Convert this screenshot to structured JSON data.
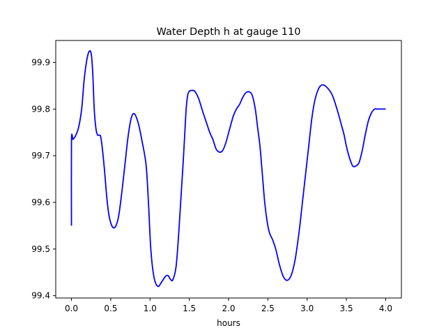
{
  "chart_data": {
    "type": "line",
    "title": "Water Depth h at gauge 110",
    "xlabel": "hours",
    "ylabel": "",
    "xlim": [
      -0.2,
      4.2
    ],
    "ylim": [
      99.395,
      99.947
    ],
    "xticks": [
      0.0,
      0.5,
      1.0,
      1.5,
      2.0,
      2.5,
      3.0,
      3.5,
      4.0
    ],
    "xtick_labels": [
      "0.0",
      "0.5",
      "1.0",
      "1.5",
      "2.0",
      "2.5",
      "3.0",
      "3.5",
      "4.0"
    ],
    "yticks": [
      99.4,
      99.5,
      99.6,
      99.7,
      99.8,
      99.9
    ],
    "ytick_labels": [
      "99.4",
      "99.5",
      "99.6",
      "99.7",
      "99.8",
      "99.9"
    ],
    "grid": false,
    "series": [
      {
        "color": "#0000ff",
        "x": [
          0.0,
          0.0,
          0.02,
          0.05,
          0.09,
          0.13,
          0.16,
          0.19,
          0.22,
          0.25,
          0.27,
          0.29,
          0.31,
          0.33,
          0.35,
          0.37,
          0.39,
          0.42,
          0.45,
          0.48,
          0.52,
          0.56,
          0.6,
          0.64,
          0.68,
          0.72,
          0.76,
          0.8,
          0.85,
          0.9,
          0.95,
          0.98,
          1.01,
          1.05,
          1.1,
          1.15,
          1.2,
          1.23,
          1.26,
          1.29,
          1.33,
          1.36,
          1.39,
          1.42,
          1.44,
          1.46,
          1.48,
          1.5,
          1.53,
          1.57,
          1.62,
          1.67,
          1.72,
          1.76,
          1.8,
          1.84,
          1.88,
          1.92,
          1.96,
          2.01,
          2.06,
          2.1,
          2.14,
          2.18,
          2.22,
          2.26,
          2.3,
          2.34,
          2.37,
          2.4,
          2.43,
          2.46,
          2.49,
          2.52,
          2.56,
          2.6,
          2.65,
          2.7,
          2.75,
          2.8,
          2.85,
          2.9,
          2.94,
          2.98,
          3.02,
          3.06,
          3.1,
          3.15,
          3.2,
          3.26,
          3.32,
          3.38,
          3.43,
          3.47,
          3.5,
          3.54,
          3.58,
          3.62,
          3.66,
          3.7,
          3.74,
          3.78,
          3.82,
          3.86,
          3.9,
          3.94,
          3.97,
          4.0
        ],
        "y": [
          99.55,
          99.732,
          99.735,
          99.742,
          99.76,
          99.8,
          99.86,
          99.9,
          99.922,
          99.92,
          99.88,
          99.8,
          99.76,
          99.745,
          99.744,
          99.742,
          99.72,
          99.67,
          99.61,
          99.57,
          99.548,
          99.548,
          99.57,
          99.62,
          99.68,
          99.74,
          99.78,
          99.79,
          99.77,
          99.73,
          99.68,
          99.6,
          99.5,
          99.44,
          99.42,
          99.43,
          99.442,
          99.443,
          99.435,
          99.434,
          99.46,
          99.52,
          99.6,
          99.68,
          99.74,
          99.8,
          99.83,
          99.838,
          99.84,
          99.838,
          99.822,
          99.795,
          99.77,
          99.75,
          99.735,
          99.715,
          99.708,
          99.71,
          99.725,
          99.755,
          99.785,
          99.8,
          99.81,
          99.825,
          99.835,
          99.837,
          99.83,
          99.8,
          99.76,
          99.72,
          99.66,
          99.6,
          99.56,
          99.535,
          99.52,
          99.5,
          99.465,
          99.44,
          99.433,
          99.445,
          99.48,
          99.54,
          99.6,
          99.66,
          99.72,
          99.78,
          99.82,
          99.845,
          99.852,
          99.845,
          99.83,
          99.8,
          99.77,
          99.745,
          99.72,
          99.695,
          99.678,
          99.678,
          99.685,
          99.71,
          99.745,
          99.775,
          99.792,
          99.8,
          99.8,
          99.8,
          99.8,
          99.8
        ]
      }
    ]
  }
}
